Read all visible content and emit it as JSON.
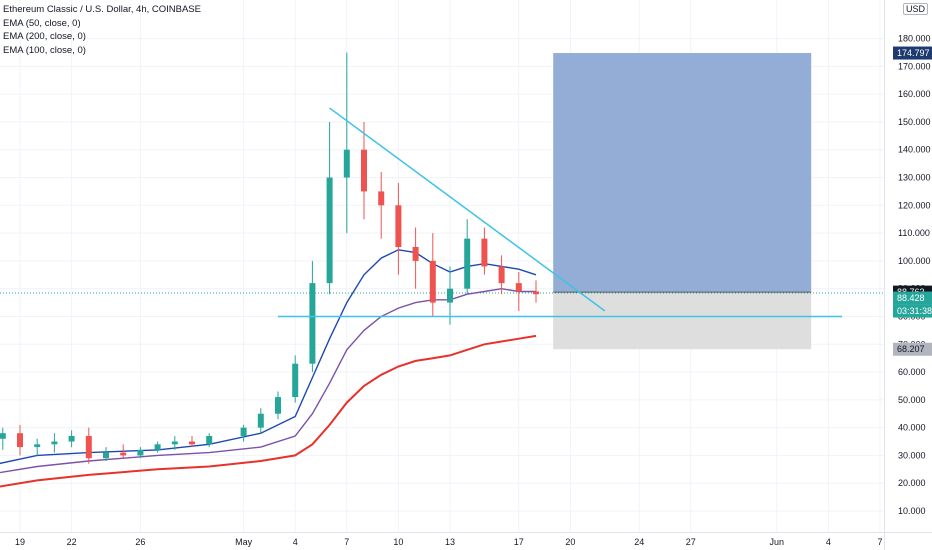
{
  "legend": {
    "title": "Ethereum Classic / U.S. Dollar, 4h, COINBASE",
    "ema50": "EMA (50, close, 0)",
    "ema200": "EMA (200, close, 0)",
    "ema100": "EMA (100, close, 0)"
  },
  "currency_badge": "USD",
  "colors": {
    "ema50": "#1e48b4",
    "ema100": "#7b52ab",
    "ema200": "#e8312a",
    "trendline": "#3cc3e6",
    "target_zone": "#8ea9d5",
    "stop_zone": "#dcdcdc",
    "up_candle": "#26a69a",
    "down_candle": "#ef5350"
  },
  "price_labels": {
    "target": "174.797",
    "entry": "88.763",
    "current": "88.428",
    "countdown": "03:31:38",
    "stop": "68.207"
  },
  "chart_data": {
    "type": "candlestick",
    "title": "Ethereum Classic / U.S. Dollar, 4h, COINBASE",
    "y_axis": {
      "ticks": [
        "10.000",
        "20.000",
        "30.000",
        "40.000",
        "50.000",
        "60.000",
        "70.000",
        "80.000",
        "90.000",
        "100.000",
        "110.000",
        "120.000",
        "130.000",
        "140.000",
        "150.000",
        "160.000",
        "170.000",
        "180.000"
      ],
      "range": [
        5,
        188
      ]
    },
    "x_axis": {
      "ticks": [
        "19",
        "22",
        "26",
        "May",
        "4",
        "7",
        "10",
        "13",
        "17",
        "20",
        "24",
        "27",
        "Jun",
        "4",
        "7"
      ],
      "range": [
        "Apr 17",
        "Jun 8"
      ]
    },
    "grid": true,
    "series": [
      {
        "name": "EMA (50, close, 0)",
        "points": [
          [
            17,
            26
          ],
          [
            20,
            30
          ],
          [
            23,
            31
          ],
          [
            27,
            32
          ],
          [
            30,
            34
          ],
          [
            2,
            38
          ],
          [
            4,
            44
          ],
          [
            5,
            58
          ],
          [
            6,
            72
          ],
          [
            7,
            85
          ],
          [
            8,
            95
          ],
          [
            9,
            101
          ],
          [
            10,
            104
          ],
          [
            11,
            103
          ],
          [
            12,
            99
          ],
          [
            13,
            96
          ],
          [
            14,
            98
          ],
          [
            15,
            99
          ],
          [
            16,
            98
          ],
          [
            17,
            97
          ],
          [
            18,
            95
          ]
        ]
      },
      {
        "name": "EMA (100, close, 0)",
        "points": [
          [
            17,
            23
          ],
          [
            20,
            26
          ],
          [
            23,
            28
          ],
          [
            27,
            30
          ],
          [
            30,
            31
          ],
          [
            2,
            33
          ],
          [
            4,
            37
          ],
          [
            5,
            45
          ],
          [
            6,
            56
          ],
          [
            7,
            68
          ],
          [
            8,
            75
          ],
          [
            9,
            80
          ],
          [
            10,
            83
          ],
          [
            11,
            85
          ],
          [
            12,
            86
          ],
          [
            13,
            86
          ],
          [
            14,
            88
          ],
          [
            15,
            89
          ],
          [
            16,
            90
          ],
          [
            17,
            89
          ],
          [
            18,
            89
          ]
        ]
      },
      {
        "name": "EMA (200, close, 0)",
        "points": [
          [
            17,
            18
          ],
          [
            20,
            21
          ],
          [
            23,
            23
          ],
          [
            27,
            25
          ],
          [
            30,
            26
          ],
          [
            2,
            28
          ],
          [
            4,
            30
          ],
          [
            5,
            34
          ],
          [
            6,
            41
          ],
          [
            7,
            49
          ],
          [
            8,
            55
          ],
          [
            9,
            59
          ],
          [
            10,
            62
          ],
          [
            11,
            64
          ],
          [
            12,
            65
          ],
          [
            13,
            66
          ],
          [
            14,
            68
          ],
          [
            15,
            70
          ],
          [
            16,
            71
          ],
          [
            17,
            72
          ],
          [
            18,
            73
          ]
        ]
      }
    ],
    "candles": [
      [
        "Apr 17",
        39,
        42,
        34,
        36
      ],
      [
        "Apr 18",
        36,
        40,
        32,
        38
      ],
      [
        "Apr 19",
        38,
        41,
        30,
        33
      ],
      [
        "Apr 20",
        33,
        36,
        30,
        34
      ],
      [
        "Apr 21",
        34,
        38,
        31,
        35
      ],
      [
        "Apr 22",
        35,
        39,
        33,
        37
      ],
      [
        "Apr 23",
        37,
        40,
        27,
        29
      ],
      [
        "Apr 24",
        29,
        33,
        28,
        31
      ],
      [
        "Apr 25",
        31,
        34,
        29,
        30
      ],
      [
        "Apr 26",
        30,
        33,
        29,
        32
      ],
      [
        "Apr 27",
        32,
        35,
        31,
        34
      ],
      [
        "Apr 28",
        34,
        37,
        32,
        35
      ],
      [
        "Apr 29",
        35,
        37,
        33,
        34
      ],
      [
        "Apr 30",
        34,
        38,
        33,
        37
      ],
      [
        "May 1",
        37,
        41,
        35,
        40
      ],
      [
        "May 2",
        40,
        47,
        38,
        45
      ],
      [
        "May 3",
        45,
        53,
        43,
        51
      ],
      [
        "May 4",
        51,
        66,
        49,
        63
      ],
      [
        "May 5",
        63,
        100,
        60,
        92
      ],
      [
        "May 6",
        92,
        150,
        88,
        130
      ],
      [
        "May 7",
        130,
        175,
        110,
        140
      ],
      [
        "May 8",
        140,
        150,
        115,
        125
      ],
      [
        "May 9",
        125,
        132,
        108,
        120
      ],
      [
        "May 10",
        120,
        128,
        95,
        105
      ],
      [
        "May 11",
        105,
        112,
        90,
        100
      ],
      [
        "May 12",
        100,
        110,
        80,
        85
      ],
      [
        "May 13",
        85,
        98,
        77,
        90
      ],
      [
        "May 14",
        90,
        115,
        88,
        108
      ],
      [
        "May 15",
        108,
        112,
        95,
        98
      ],
      [
        "May 16",
        98,
        102,
        88,
        92
      ],
      [
        "May 17",
        92,
        96,
        82,
        89
      ],
      [
        "May 18",
        89,
        93,
        85,
        88
      ]
    ],
    "annotations": {
      "descending_trendline": {
        "from": [
          "May 6",
          155
        ],
        "to": [
          "May 22",
          82
        ]
      },
      "horizontal_support": 80,
      "long_position": {
        "from": "May 19",
        "to": "Jun 3",
        "entry": 88.763,
        "target": 174.797,
        "stop": 68.207
      }
    },
    "current_price": 88.428
  }
}
